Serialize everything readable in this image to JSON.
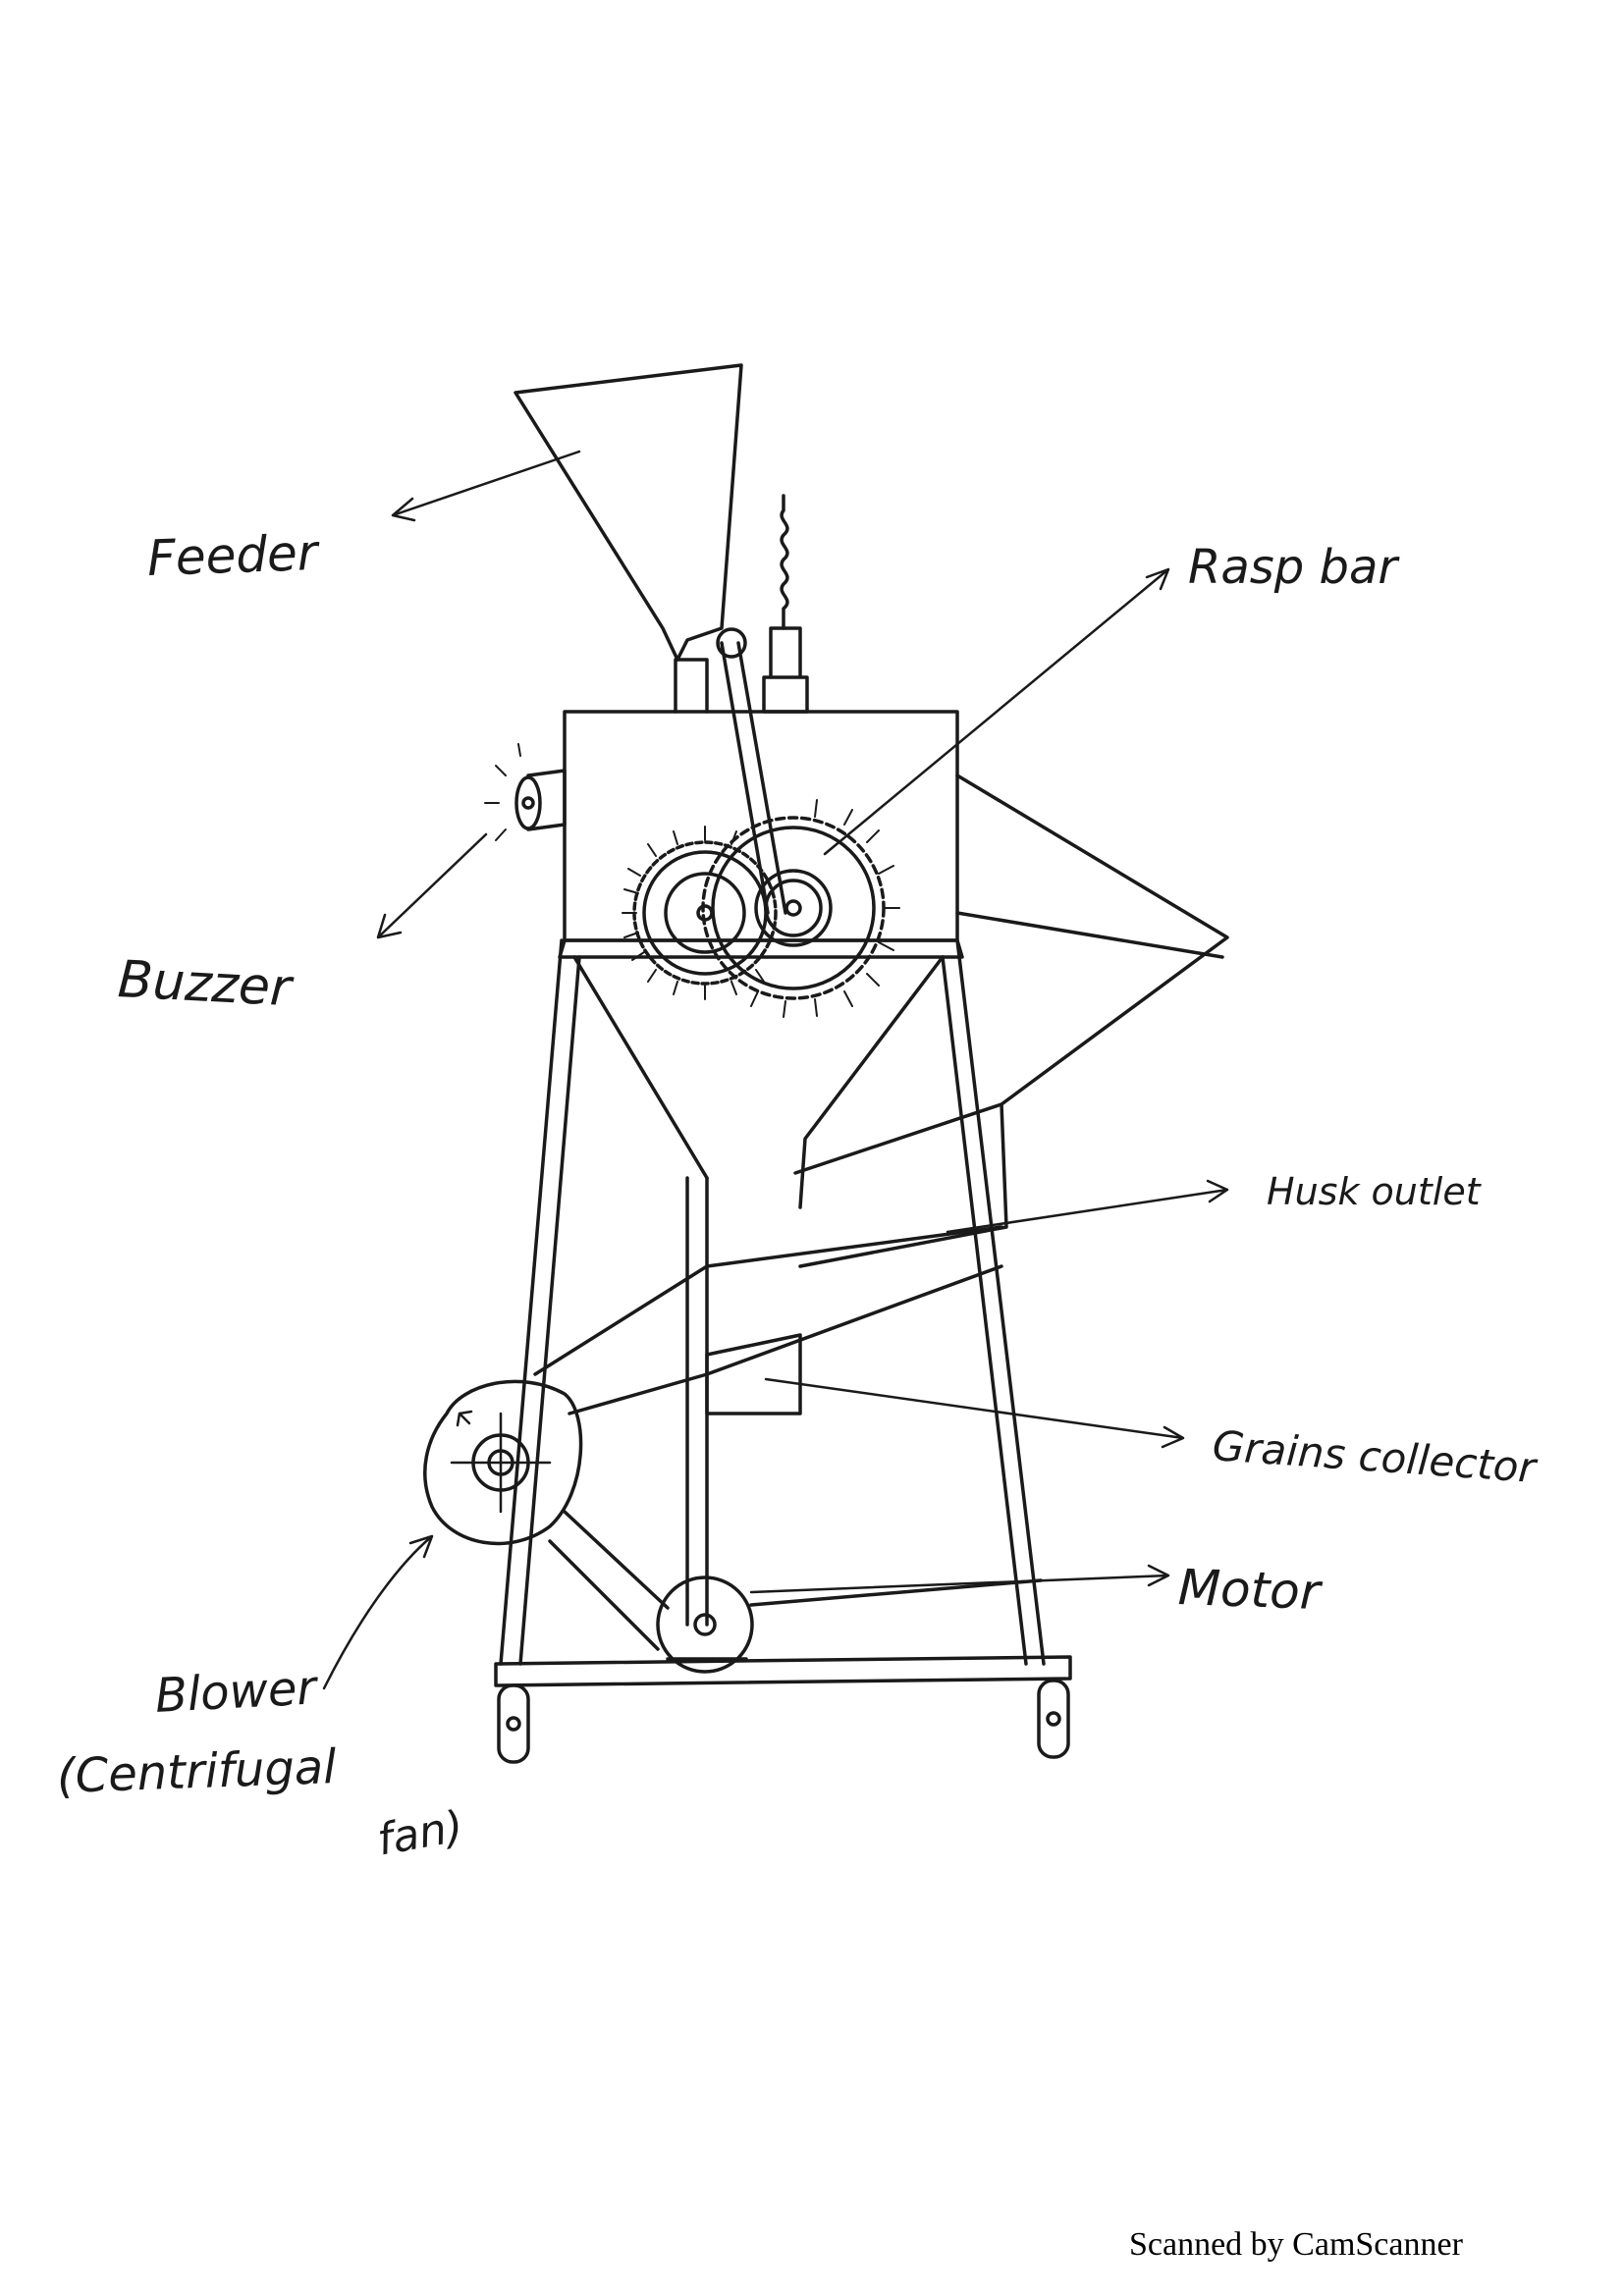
{
  "labels": {
    "feeder": "Feeder",
    "rasp_bar": "Rasp bar",
    "buzzer": "Buzzer",
    "husk_outlet": "Husk outlet",
    "grains_collector": "Grains collector",
    "motor": "Motor",
    "blower_line1": "Blower",
    "blower_line2": "(Centrifugal",
    "blower_line3": "fan)"
  },
  "footer": "Scanned by CamScanner",
  "colors": {
    "ink": "#1a1a1a",
    "paper": "#ffffff"
  }
}
